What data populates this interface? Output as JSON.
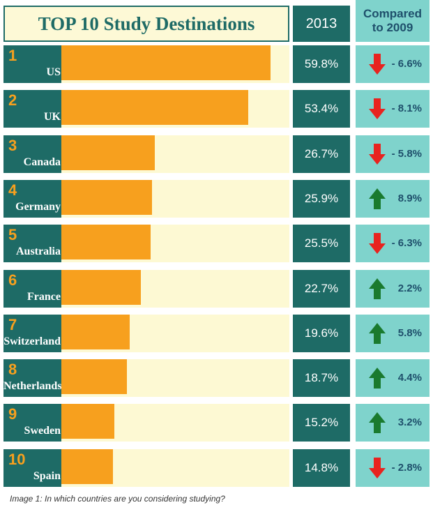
{
  "chart_data": {
    "type": "bar",
    "title": "TOP 10 Study Destinations",
    "ranks": [
      1,
      2,
      3,
      4,
      5,
      6,
      7,
      8,
      9,
      10
    ],
    "categories": [
      "US",
      "UK",
      "Canada",
      "Germany",
      "Australia",
      "France",
      "Switzerland",
      "Netherlands",
      "Sweden",
      "Spain"
    ],
    "series": [
      {
        "name": "2013",
        "color": "#f7a01e",
        "values": [
          59.8,
          53.4,
          26.7,
          25.9,
          25.5,
          22.7,
          19.6,
          18.7,
          15.2,
          14.8
        ],
        "value_labels": [
          "59.8%",
          "53.4%",
          "26.7%",
          "25.9%",
          "25.5%",
          "22.7%",
          "19.6%",
          "18.7%",
          "15.2%",
          "14.8%"
        ]
      },
      {
        "name": "Compared to 2009",
        "up_color": "#1a7a2e",
        "down_color": "#e8231f",
        "values": [
          -6.6,
          -8.1,
          -5.8,
          8.9,
          -6.3,
          2.2,
          5.8,
          4.4,
          3.2,
          -2.8
        ],
        "value_labels": [
          "- 6.6%",
          "- 8.1%",
          "- 5.8%",
          "8.9%",
          "- 6.3%",
          "2.2%",
          "5.8%",
          "4.4%",
          "3.2%",
          "- 2.8%"
        ]
      }
    ],
    "caption": "Image 1: In which countries are you considering studying?"
  }
}
